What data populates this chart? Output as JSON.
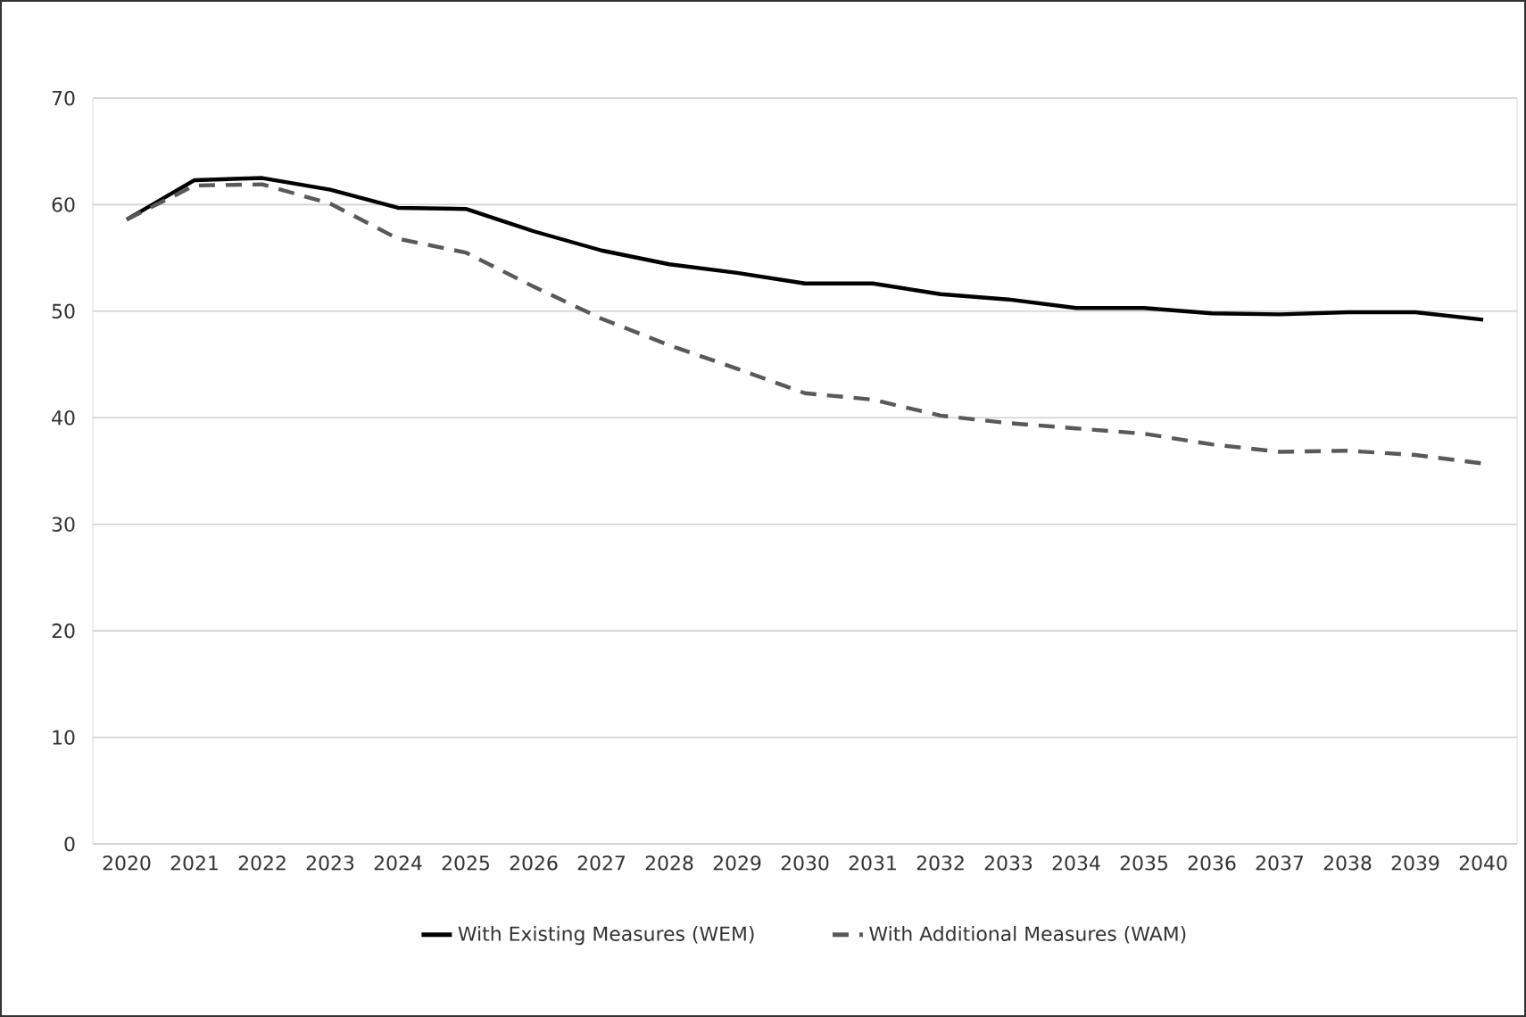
{
  "chart_data": {
    "type": "line",
    "categories": [
      "2020",
      "2021",
      "2022",
      "2023",
      "2024",
      "2025",
      "2026",
      "2027",
      "2028",
      "2029",
      "2030",
      "2031",
      "2032",
      "2033",
      "2034",
      "2035",
      "2036",
      "2037",
      "2038",
      "2039",
      "2040"
    ],
    "series": [
      {
        "name": "With Existing Measures (WEM)",
        "color": "#000000",
        "line_style": "solid",
        "values": [
          58.6,
          62.3,
          62.5,
          61.4,
          59.7,
          59.6,
          57.5,
          55.7,
          54.4,
          53.6,
          52.6,
          52.6,
          51.6,
          51.1,
          50.3,
          50.3,
          49.8,
          49.7,
          49.9,
          49.9,
          49.2
        ]
      },
      {
        "name": "With Additional Measures (WAM)",
        "color": "#595959",
        "line_style": "dashed",
        "values": [
          58.6,
          61.8,
          61.9,
          60.1,
          56.8,
          55.5,
          52.3,
          49.3,
          46.8,
          44.6,
          42.3,
          41.7,
          40.2,
          39.5,
          39.0,
          38.5,
          37.5,
          36.8,
          36.9,
          36.5,
          35.7
        ]
      }
    ],
    "ylim": [
      0,
      70
    ],
    "yticks": [
      0,
      10,
      20,
      30,
      40,
      50,
      60,
      70
    ],
    "grid": "y",
    "legend": "bottom",
    "marker": "none"
  }
}
